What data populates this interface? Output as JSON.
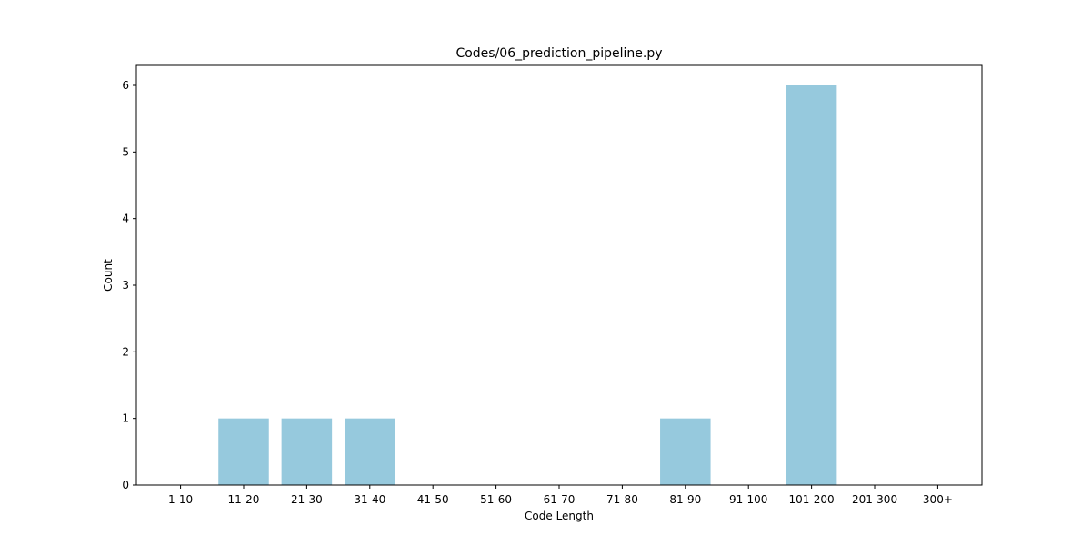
{
  "chart_data": {
    "type": "bar",
    "title": "Codes/06_prediction_pipeline.py",
    "xlabel": "Code Length",
    "ylabel": "Count",
    "categories": [
      "1-10",
      "11-20",
      "21-30",
      "31-40",
      "41-50",
      "51-60",
      "61-70",
      "71-80",
      "81-90",
      "91-100",
      "101-200",
      "201-300",
      "300+"
    ],
    "values": [
      0,
      1,
      1,
      1,
      0,
      0,
      0,
      0,
      1,
      0,
      6,
      0,
      0
    ],
    "ylim": [
      0,
      6.3
    ],
    "yticks": [
      "0",
      "1",
      "2",
      "3",
      "4",
      "5",
      "6"
    ],
    "bar_color": "#96c9dd",
    "grid": false
  }
}
